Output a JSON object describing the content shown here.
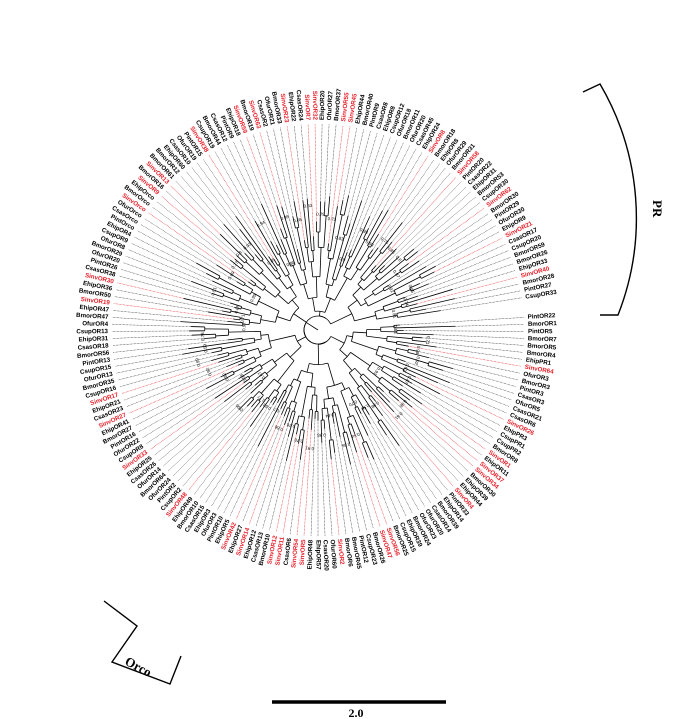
{
  "figure": {
    "group_labels": {
      "pr": "PR",
      "orco": "Orco"
    },
    "scale_bar_label": "2.0",
    "highlight_color": "#e8202a",
    "branch_color": "#000000",
    "leaves": [
      {
        "label": "PintOR22",
        "highlight": false
      },
      {
        "label": "BmorOR1",
        "highlight": false
      },
      {
        "label": "PintOR5",
        "highlight": false
      },
      {
        "label": "BmorOR7",
        "highlight": false
      },
      {
        "label": "BmorOR5",
        "highlight": false
      },
      {
        "label": "BmorOR4",
        "highlight": false
      },
      {
        "label": "EhipPR1",
        "highlight": false
      },
      {
        "label": "SinvOR64",
        "highlight": true
      },
      {
        "label": "OfurOR3",
        "highlight": false
      },
      {
        "label": "BmorOR3",
        "highlight": false
      },
      {
        "label": "PintOR3",
        "highlight": false
      },
      {
        "label": "CsasOR3",
        "highlight": false
      },
      {
        "label": "OfurOR5",
        "highlight": false
      },
      {
        "label": "CsasOR21",
        "highlight": false
      },
      {
        "label": "CsasOR6",
        "highlight": false
      },
      {
        "label": "SinvOR26",
        "highlight": true
      },
      {
        "label": "EhipPR3",
        "highlight": false
      },
      {
        "label": "CsupPR1",
        "highlight": false
      },
      {
        "label": "CsupPR2",
        "highlight": false
      },
      {
        "label": "BmorOR8",
        "highlight": false
      },
      {
        "label": "SinvOR1",
        "highlight": true
      },
      {
        "label": "EhipOR11",
        "highlight": false
      },
      {
        "label": "SinvOR37",
        "highlight": true
      },
      {
        "label": "SinvOR34",
        "highlight": true
      },
      {
        "label": "BmorOR30",
        "highlight": false
      },
      {
        "label": "EhipOR39",
        "highlight": false
      },
      {
        "label": "EhipOR44",
        "highlight": false
      },
      {
        "label": "SinvOR4",
        "highlight": true
      },
      {
        "label": "PintOR33",
        "highlight": false
      },
      {
        "label": "EhipOR14",
        "highlight": false
      },
      {
        "label": "BmorOR39",
        "highlight": false
      },
      {
        "label": "CsasOR14",
        "highlight": false
      },
      {
        "label": "OfurOR20",
        "highlight": false
      },
      {
        "label": "OfurOR23",
        "highlight": false
      },
      {
        "label": "BmorOR24",
        "highlight": false
      },
      {
        "label": "EhipOR39",
        "highlight": false
      },
      {
        "label": "CsupOR15",
        "highlight": false
      },
      {
        "label": "BmorOR25",
        "highlight": false
      },
      {
        "label": "SinvOR56",
        "highlight": true
      },
      {
        "label": "SinvOR47",
        "highlight": true
      },
      {
        "label": "BmorOR26",
        "highlight": false
      },
      {
        "label": "CsupOR23",
        "highlight": false
      },
      {
        "label": "PintOR12",
        "highlight": false
      },
      {
        "label": "BmorOR45",
        "highlight": false
      },
      {
        "label": "BmorOR6",
        "highlight": false
      },
      {
        "label": "SinvOR2",
        "highlight": true
      },
      {
        "label": "OfurOR60",
        "highlight": false
      },
      {
        "label": "CsasOR20",
        "highlight": false
      },
      {
        "label": "EhipOR57",
        "highlight": false
      },
      {
        "label": "EhipOR48",
        "highlight": false
      },
      {
        "label": "SinvOR5",
        "highlight": true
      },
      {
        "label": "SinvOR54",
        "highlight": true
      },
      {
        "label": "CsasOR6",
        "highlight": false
      },
      {
        "label": "SinvOR11",
        "highlight": true
      },
      {
        "label": "SinvOR12",
        "highlight": true
      },
      {
        "label": "BmorOR10",
        "highlight": false
      },
      {
        "label": "CsasOR13",
        "highlight": false
      },
      {
        "label": "EhipOR12",
        "highlight": false
      },
      {
        "label": "SinvOR14",
        "highlight": true
      },
      {
        "label": "EhipOR27",
        "highlight": false
      },
      {
        "label": "SinvOR42",
        "highlight": true
      },
      {
        "label": "EhipOR5",
        "highlight": false
      },
      {
        "label": "PintOR10",
        "highlight": false
      },
      {
        "label": "OfurOR3",
        "highlight": false
      },
      {
        "label": "EhipOR3",
        "highlight": false
      },
      {
        "label": "CsasOR15",
        "highlight": false
      },
      {
        "label": "BmorOR10",
        "highlight": false
      },
      {
        "label": "EhipOR49",
        "highlight": false
      },
      {
        "label": "SinvOR48",
        "highlight": true
      },
      {
        "label": "CsupOR2",
        "highlight": false
      },
      {
        "label": "PintOR2",
        "highlight": false
      },
      {
        "label": "OfurOR24",
        "highlight": false
      },
      {
        "label": "BmorOR64",
        "highlight": false
      },
      {
        "label": "OfurOR14",
        "highlight": false
      },
      {
        "label": "CsasOR26",
        "highlight": false
      },
      {
        "label": "EhipOR25",
        "highlight": false
      },
      {
        "label": "SinvOR33",
        "highlight": true
      },
      {
        "label": "CsupOR8",
        "highlight": false
      },
      {
        "label": "OfurOR22",
        "highlight": false
      },
      {
        "label": "PintOR16",
        "highlight": false
      },
      {
        "label": "BmorOR27",
        "highlight": false
      },
      {
        "label": "EhipOR41",
        "highlight": false
      },
      {
        "label": "SinvOR27",
        "highlight": true
      },
      {
        "label": "CsasOR23",
        "highlight": false
      },
      {
        "label": "EhipOR21",
        "highlight": false
      },
      {
        "label": "SinvOR17",
        "highlight": true
      },
      {
        "label": "CsupOR16",
        "highlight": false
      },
      {
        "label": "BmorOR35",
        "highlight": false
      },
      {
        "label": "OfurOR13",
        "highlight": false
      },
      {
        "label": "CsupOR15",
        "highlight": false
      },
      {
        "label": "PintOR13",
        "highlight": false
      },
      {
        "label": "BmorOR56",
        "highlight": false
      },
      {
        "label": "CsasOR18",
        "highlight": false
      },
      {
        "label": "EhipOR31",
        "highlight": false
      },
      {
        "label": "CsupOR13",
        "highlight": false
      },
      {
        "label": "OfurOR4",
        "highlight": false
      },
      {
        "label": "BmorOR47",
        "highlight": false
      },
      {
        "label": "EhipOR47",
        "highlight": false
      },
      {
        "label": "SinvOR19",
        "highlight": true
      },
      {
        "label": "BmorOR50",
        "highlight": false
      },
      {
        "label": "EhipOR36",
        "highlight": false
      },
      {
        "label": "SinvOR30",
        "highlight": true
      },
      {
        "label": "CsasOR38",
        "highlight": false
      },
      {
        "label": "PintOR26",
        "highlight": false
      },
      {
        "label": "OfurOR20",
        "highlight": false
      },
      {
        "label": "BmorOR29",
        "highlight": false
      },
      {
        "label": "OfurOR8",
        "highlight": false
      },
      {
        "label": "CsupOR9",
        "highlight": false
      },
      {
        "label": "EhipOR4",
        "highlight": false
      },
      {
        "label": "PintOrco",
        "highlight": false
      },
      {
        "label": "CsasOrco",
        "highlight": false
      },
      {
        "label": "OfurOrco",
        "highlight": false
      },
      {
        "label": "SinvOrco",
        "highlight": true
      },
      {
        "label": "BmorOrco",
        "highlight": false
      },
      {
        "label": "EhipOrco",
        "highlight": false
      },
      {
        "label": "SinvOR9",
        "highlight": true
      },
      {
        "label": "BmorOR16",
        "highlight": false
      },
      {
        "label": "SinvOR13",
        "highlight": true
      },
      {
        "label": "BmorOR61",
        "highlight": false
      },
      {
        "label": "BmorOR12",
        "highlight": false
      },
      {
        "label": "EhipOR60",
        "highlight": false
      },
      {
        "label": "CsasOR10",
        "highlight": false
      },
      {
        "label": "OfurOR19",
        "highlight": false
      },
      {
        "label": "PintOR15",
        "highlight": false
      },
      {
        "label": "SinvOR38",
        "highlight": true
      },
      {
        "label": "CsupOR19",
        "highlight": false
      },
      {
        "label": "BmorOR44",
        "highlight": false
      },
      {
        "label": "CsasOR12",
        "highlight": false
      },
      {
        "label": "PintOR9",
        "highlight": false
      },
      {
        "label": "EhipOR18",
        "highlight": false
      },
      {
        "label": "SinvOR59",
        "highlight": true
      },
      {
        "label": "BmorOR19",
        "highlight": false
      },
      {
        "label": "SinvOR63",
        "highlight": true
      },
      {
        "label": "CsasOR2",
        "highlight": false
      },
      {
        "label": "OfurOR21",
        "highlight": false
      },
      {
        "label": "BmorOR33",
        "highlight": false
      },
      {
        "label": "SinvOR23",
        "highlight": true
      },
      {
        "label": "EhipOR22",
        "highlight": false
      },
      {
        "label": "CsasOR24",
        "highlight": false
      },
      {
        "label": "SinvOR7",
        "highlight": true
      },
      {
        "label": "SinvOR32",
        "highlight": true
      },
      {
        "label": "EhipOR20",
        "highlight": false
      },
      {
        "label": "OfurOR27",
        "highlight": false
      },
      {
        "label": "BmorOR37",
        "highlight": false
      },
      {
        "label": "SinvOR55",
        "highlight": true
      },
      {
        "label": "SinvOR45",
        "highlight": true
      },
      {
        "label": "EhipOR44",
        "highlight": false
      },
      {
        "label": "BmorOR40",
        "highlight": false
      },
      {
        "label": "PintOR9",
        "highlight": false
      },
      {
        "label": "CsasOR8",
        "highlight": false
      },
      {
        "label": "EhipOR8",
        "highlight": false
      },
      {
        "label": "CsupOR12",
        "highlight": false
      },
      {
        "label": "OfurOR18",
        "highlight": false
      },
      {
        "label": "BmorOR11",
        "highlight": false
      },
      {
        "label": "OfurOR20",
        "highlight": false
      },
      {
        "label": "CsasOR45",
        "highlight": false
      },
      {
        "label": "EhipOR24",
        "highlight": false
      },
      {
        "label": "SinvOR8",
        "highlight": true
      },
      {
        "label": "BmorOR18",
        "highlight": false
      },
      {
        "label": "EhipOR8",
        "highlight": false
      },
      {
        "label": "OfurOR29",
        "highlight": false
      },
      {
        "label": "BmorOR31",
        "highlight": false
      },
      {
        "label": "SinvOR58",
        "highlight": true
      },
      {
        "label": "PintOR20",
        "highlight": false
      },
      {
        "label": "CsasOR22",
        "highlight": false
      },
      {
        "label": "EhipOR31",
        "highlight": false
      },
      {
        "label": "BmorOR53",
        "highlight": false
      },
      {
        "label": "CsupOR30",
        "highlight": false
      },
      {
        "label": "SinvOR62",
        "highlight": true
      },
      {
        "label": "BmorOR30",
        "highlight": false
      },
      {
        "label": "PintOR29",
        "highlight": false
      },
      {
        "label": "OfurOR30",
        "highlight": false
      },
      {
        "label": "EhipOR9",
        "highlight": false
      },
      {
        "label": "SinvOR21",
        "highlight": true
      },
      {
        "label": "CsasOR17",
        "highlight": false
      },
      {
        "label": "CsupOR20",
        "highlight": false
      },
      {
        "label": "BmorOR59",
        "highlight": false
      },
      {
        "label": "BmorOR26",
        "highlight": false
      },
      {
        "label": "EhipOR33",
        "highlight": false
      },
      {
        "label": "SinvOR40",
        "highlight": true
      },
      {
        "label": "BmorOR28",
        "highlight": false
      },
      {
        "label": "PintOR27",
        "highlight": false
      },
      {
        "label": "CsupOR33",
        "highlight": false
      }
    ],
    "bootstrap_values": [
      "0.55",
      "0.71",
      "0.98",
      "0.92",
      "0.63",
      "0.87",
      "0.91",
      "0.98",
      "0.61",
      "0.98",
      "0.59",
      "0.70",
      "0.54",
      "0.65",
      "0.64",
      "0.98",
      "0.91",
      "0.78",
      "0.70",
      "0.66",
      "0.7",
      "0.98",
      "0.77",
      "0.96",
      "0.67",
      "0.58",
      "0.82",
      "0.92",
      "0.99",
      "0.59",
      "0.78",
      "0.97",
      "0.71",
      "0.86",
      "0.51",
      "0.95",
      "0.69",
      "0.77",
      "0.8",
      "0.93",
      "0.65",
      "0.94",
      "0.88",
      "0.95",
      "0.68",
      "0.63",
      "0.79",
      "0.72",
      "0.83",
      "0.9",
      "0.93",
      "0.99",
      "0.75",
      "0.85",
      "0.6",
      "0.87",
      "0.92",
      "0.85",
      "0.74",
      "0.81"
    ]
  }
}
